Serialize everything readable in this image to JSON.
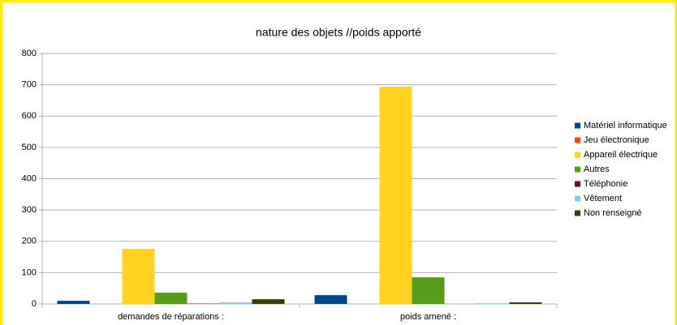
{
  "chart_data": {
    "type": "bar",
    "title": "nature des objets //poids apporté",
    "categories": [
      "demandes de réparations :",
      "poids amené :"
    ],
    "series": [
      {
        "name": "Matériel informatique",
        "color": "#004586",
        "values": [
          10,
          28
        ]
      },
      {
        "name": "Jeu électronique",
        "color": "#ff420e",
        "values": [
          0,
          0
        ]
      },
      {
        "name": "Appareil électrique",
        "color": "#ffd320",
        "values": [
          176,
          694
        ]
      },
      {
        "name": "Autres",
        "color": "#579d1c",
        "values": [
          36,
          85
        ]
      },
      {
        "name": "Téléphonie",
        "color": "#7e0021",
        "values": [
          1,
          0
        ]
      },
      {
        "name": "Vêtement",
        "color": "#83caff",
        "values": [
          5,
          2
        ]
      },
      {
        "name": "Non renseigné",
        "color": "#314004",
        "values": [
          15,
          5
        ]
      }
    ],
    "ylim": [
      0,
      800
    ],
    "yticks": [
      0,
      100,
      200,
      300,
      400,
      500,
      600,
      700,
      800
    ],
    "grid": true,
    "legend": "right"
  }
}
